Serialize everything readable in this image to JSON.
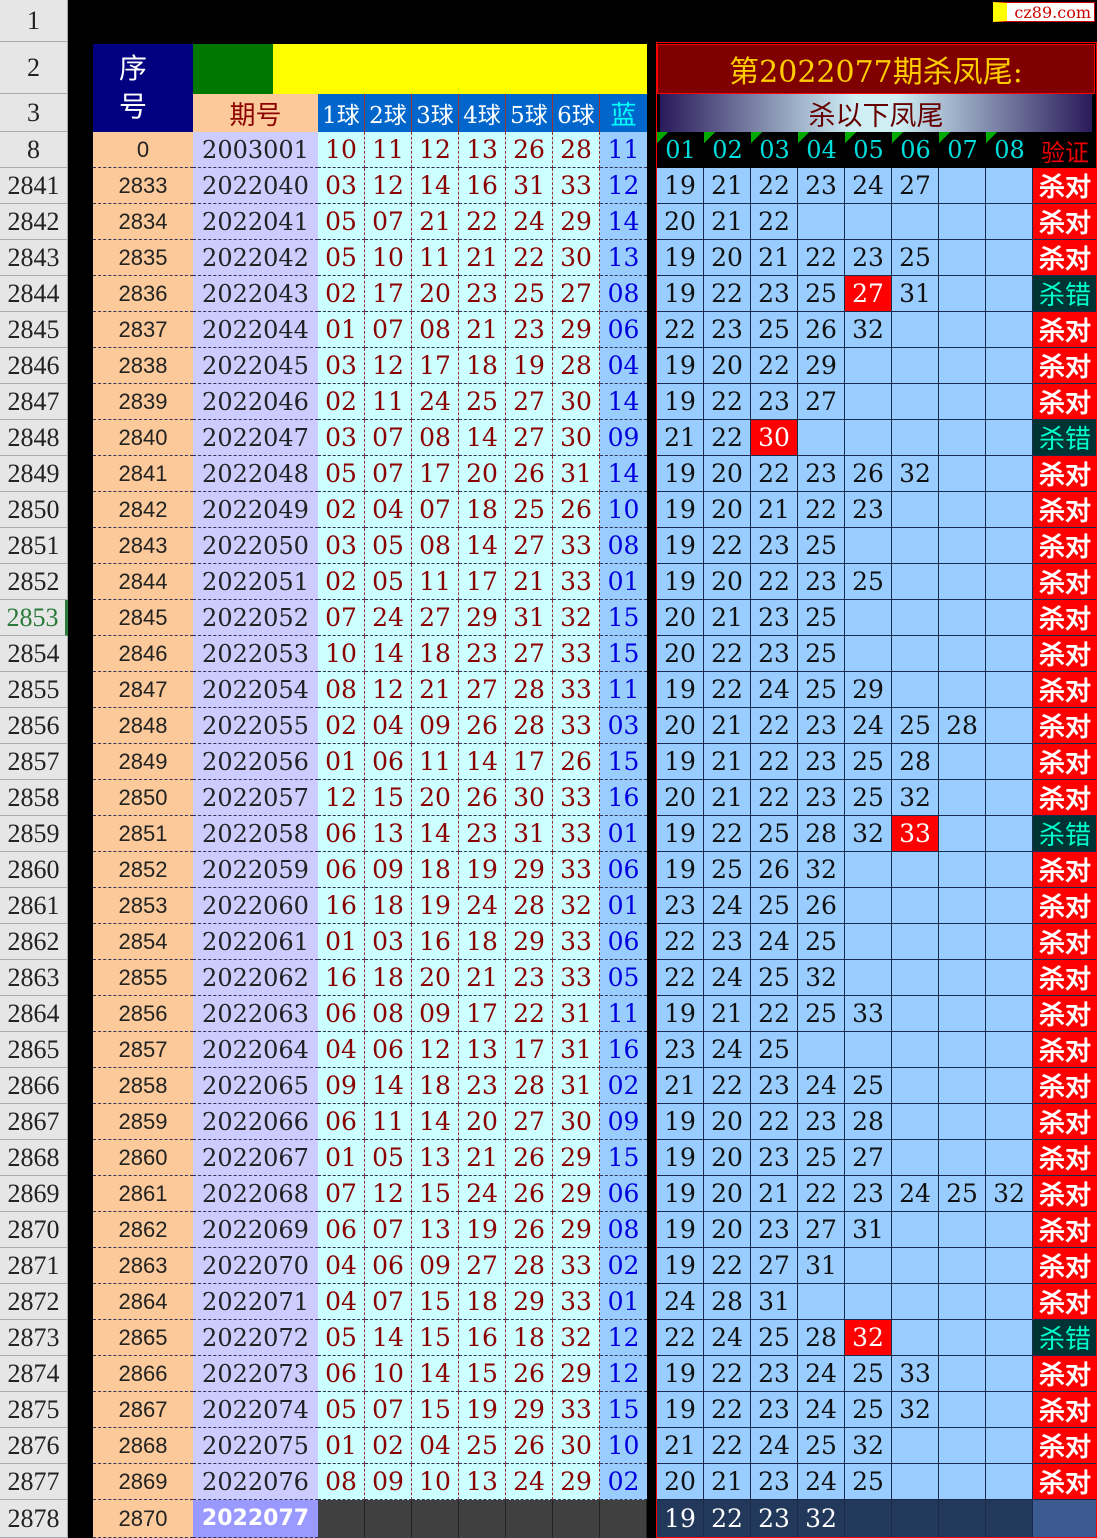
{
  "watermark": "cz89.com",
  "header": {
    "seq_label": "序号",
    "period_label": "期号",
    "ball_labels": [
      "1球",
      "2球",
      "3球",
      "4球",
      "5球",
      "6球"
    ],
    "blue_label": "蓝",
    "title": "第2022077期杀凤尾:",
    "subtitle": "杀以下凤尾",
    "kill_cols": [
      "01",
      "02",
      "03",
      "04",
      "05",
      "06",
      "07",
      "08"
    ],
    "verify_label": "验证"
  },
  "row_headers_top": [
    "1",
    "2",
    "3",
    "8"
  ],
  "first_row": {
    "seq": "0",
    "period": "2003001",
    "balls": [
      "10",
      "11",
      "12",
      "13",
      "26",
      "28"
    ],
    "blue": "11"
  },
  "colors": {
    "hit": "#ff0000",
    "ok_bg": "#ff0000",
    "bad_bg": "#003333"
  },
  "selected_row": "2853",
  "rows": [
    {
      "r": "2841",
      "s": "2833",
      "p": "2022040",
      "b": [
        "03",
        "12",
        "14",
        "16",
        "31",
        "33"
      ],
      "bl": "12",
      "k": [
        "19",
        "21",
        "22",
        "23",
        "24",
        "27"
      ],
      "v": "杀对"
    },
    {
      "r": "2842",
      "s": "2834",
      "p": "2022041",
      "b": [
        "05",
        "07",
        "21",
        "22",
        "24",
        "29"
      ],
      "bl": "14",
      "k": [
        "20",
        "21",
        "22"
      ],
      "v": "杀对"
    },
    {
      "r": "2843",
      "s": "2835",
      "p": "2022042",
      "b": [
        "05",
        "10",
        "11",
        "21",
        "22",
        "30"
      ],
      "bl": "13",
      "k": [
        "19",
        "20",
        "21",
        "22",
        "23",
        "25"
      ],
      "v": "杀对"
    },
    {
      "r": "2844",
      "s": "2836",
      "p": "2022043",
      "b": [
        "02",
        "17",
        "20",
        "23",
        "25",
        "27"
      ],
      "bl": "08",
      "k": [
        "19",
        "22",
        "23",
        "25",
        "27",
        "31"
      ],
      "v": "杀错",
      "hit": "27"
    },
    {
      "r": "2845",
      "s": "2837",
      "p": "2022044",
      "b": [
        "01",
        "07",
        "08",
        "21",
        "23",
        "29"
      ],
      "bl": "06",
      "k": [
        "22",
        "23",
        "25",
        "26",
        "32"
      ],
      "v": "杀对"
    },
    {
      "r": "2846",
      "s": "2838",
      "p": "2022045",
      "b": [
        "03",
        "12",
        "17",
        "18",
        "19",
        "28"
      ],
      "bl": "04",
      "k": [
        "19",
        "20",
        "22",
        "29"
      ],
      "v": "杀对"
    },
    {
      "r": "2847",
      "s": "2839",
      "p": "2022046",
      "b": [
        "02",
        "11",
        "24",
        "25",
        "27",
        "30"
      ],
      "bl": "14",
      "k": [
        "19",
        "22",
        "23",
        "27"
      ],
      "v": "杀对"
    },
    {
      "r": "2848",
      "s": "2840",
      "p": "2022047",
      "b": [
        "03",
        "07",
        "08",
        "14",
        "27",
        "30"
      ],
      "bl": "09",
      "k": [
        "21",
        "22",
        "30"
      ],
      "v": "杀错",
      "hit": "30"
    },
    {
      "r": "2849",
      "s": "2841",
      "p": "2022048",
      "b": [
        "05",
        "07",
        "17",
        "20",
        "26",
        "31"
      ],
      "bl": "14",
      "k": [
        "19",
        "20",
        "22",
        "23",
        "26",
        "32"
      ],
      "v": "杀对"
    },
    {
      "r": "2850",
      "s": "2842",
      "p": "2022049",
      "b": [
        "02",
        "04",
        "07",
        "18",
        "25",
        "26"
      ],
      "bl": "10",
      "k": [
        "19",
        "20",
        "21",
        "22",
        "23"
      ],
      "v": "杀对"
    },
    {
      "r": "2851",
      "s": "2843",
      "p": "2022050",
      "b": [
        "03",
        "05",
        "08",
        "14",
        "27",
        "33"
      ],
      "bl": "08",
      "k": [
        "19",
        "22",
        "23",
        "25"
      ],
      "v": "杀对"
    },
    {
      "r": "2852",
      "s": "2844",
      "p": "2022051",
      "b": [
        "02",
        "05",
        "11",
        "17",
        "21",
        "33"
      ],
      "bl": "01",
      "k": [
        "19",
        "20",
        "22",
        "23",
        "25"
      ],
      "v": "杀对"
    },
    {
      "r": "2853",
      "s": "2845",
      "p": "2022052",
      "b": [
        "07",
        "24",
        "27",
        "29",
        "31",
        "32"
      ],
      "bl": "15",
      "k": [
        "20",
        "21",
        "23",
        "25"
      ],
      "v": "杀对"
    },
    {
      "r": "2854",
      "s": "2846",
      "p": "2022053",
      "b": [
        "10",
        "14",
        "18",
        "23",
        "27",
        "33"
      ],
      "bl": "15",
      "k": [
        "20",
        "22",
        "23",
        "25"
      ],
      "v": "杀对"
    },
    {
      "r": "2855",
      "s": "2847",
      "p": "2022054",
      "b": [
        "08",
        "12",
        "21",
        "27",
        "28",
        "33"
      ],
      "bl": "11",
      "k": [
        "19",
        "22",
        "24",
        "25",
        "29"
      ],
      "v": "杀对"
    },
    {
      "r": "2856",
      "s": "2848",
      "p": "2022055",
      "b": [
        "02",
        "04",
        "09",
        "26",
        "28",
        "33"
      ],
      "bl": "03",
      "k": [
        "20",
        "21",
        "22",
        "23",
        "24",
        "25",
        "28"
      ],
      "v": "杀对"
    },
    {
      "r": "2857",
      "s": "2849",
      "p": "2022056",
      "b": [
        "01",
        "06",
        "11",
        "14",
        "17",
        "26"
      ],
      "bl": "15",
      "k": [
        "19",
        "21",
        "22",
        "23",
        "25",
        "28"
      ],
      "v": "杀对"
    },
    {
      "r": "2858",
      "s": "2850",
      "p": "2022057",
      "b": [
        "12",
        "15",
        "20",
        "26",
        "30",
        "33"
      ],
      "bl": "16",
      "k": [
        "20",
        "21",
        "22",
        "23",
        "25",
        "32"
      ],
      "v": "杀对"
    },
    {
      "r": "2859",
      "s": "2851",
      "p": "2022058",
      "b": [
        "06",
        "13",
        "14",
        "23",
        "31",
        "33"
      ],
      "bl": "01",
      "k": [
        "19",
        "22",
        "25",
        "28",
        "32",
        "33"
      ],
      "v": "杀错",
      "hit": "33"
    },
    {
      "r": "2860",
      "s": "2852",
      "p": "2022059",
      "b": [
        "06",
        "09",
        "18",
        "19",
        "29",
        "33"
      ],
      "bl": "06",
      "k": [
        "19",
        "25",
        "26",
        "32"
      ],
      "v": "杀对"
    },
    {
      "r": "2861",
      "s": "2853",
      "p": "2022060",
      "b": [
        "16",
        "18",
        "19",
        "24",
        "28",
        "32"
      ],
      "bl": "01",
      "k": [
        "23",
        "24",
        "25",
        "26"
      ],
      "v": "杀对"
    },
    {
      "r": "2862",
      "s": "2854",
      "p": "2022061",
      "b": [
        "01",
        "03",
        "16",
        "18",
        "29",
        "33"
      ],
      "bl": "06",
      "k": [
        "22",
        "23",
        "24",
        "25"
      ],
      "v": "杀对"
    },
    {
      "r": "2863",
      "s": "2855",
      "p": "2022062",
      "b": [
        "16",
        "18",
        "20",
        "21",
        "23",
        "33"
      ],
      "bl": "05",
      "k": [
        "22",
        "24",
        "25",
        "32"
      ],
      "v": "杀对"
    },
    {
      "r": "2864",
      "s": "2856",
      "p": "2022063",
      "b": [
        "06",
        "08",
        "09",
        "17",
        "22",
        "31"
      ],
      "bl": "11",
      "k": [
        "19",
        "21",
        "22",
        "25",
        "33"
      ],
      "v": "杀对"
    },
    {
      "r": "2865",
      "s": "2857",
      "p": "2022064",
      "b": [
        "04",
        "06",
        "12",
        "13",
        "17",
        "31"
      ],
      "bl": "16",
      "k": [
        "23",
        "24",
        "25"
      ],
      "v": "杀对"
    },
    {
      "r": "2866",
      "s": "2858",
      "p": "2022065",
      "b": [
        "09",
        "14",
        "18",
        "23",
        "28",
        "31"
      ],
      "bl": "02",
      "k": [
        "21",
        "22",
        "23",
        "24",
        "25"
      ],
      "v": "杀对"
    },
    {
      "r": "2867",
      "s": "2859",
      "p": "2022066",
      "b": [
        "06",
        "11",
        "14",
        "20",
        "27",
        "30"
      ],
      "bl": "09",
      "k": [
        "19",
        "20",
        "22",
        "23",
        "28"
      ],
      "v": "杀对"
    },
    {
      "r": "2868",
      "s": "2860",
      "p": "2022067",
      "b": [
        "01",
        "05",
        "13",
        "21",
        "26",
        "29"
      ],
      "bl": "15",
      "k": [
        "19",
        "20",
        "23",
        "25",
        "27"
      ],
      "v": "杀对"
    },
    {
      "r": "2869",
      "s": "2861",
      "p": "2022068",
      "b": [
        "07",
        "12",
        "15",
        "24",
        "26",
        "29"
      ],
      "bl": "06",
      "k": [
        "19",
        "20",
        "21",
        "22",
        "23",
        "24",
        "25",
        "32"
      ],
      "v": "杀对"
    },
    {
      "r": "2870",
      "s": "2862",
      "p": "2022069",
      "b": [
        "06",
        "07",
        "13",
        "19",
        "26",
        "29"
      ],
      "bl": "08",
      "k": [
        "19",
        "20",
        "23",
        "27",
        "31"
      ],
      "v": "杀对"
    },
    {
      "r": "2871",
      "s": "2863",
      "p": "2022070",
      "b": [
        "04",
        "06",
        "09",
        "27",
        "28",
        "33"
      ],
      "bl": "02",
      "k": [
        "19",
        "22",
        "27",
        "31"
      ],
      "v": "杀对"
    },
    {
      "r": "2872",
      "s": "2864",
      "p": "2022071",
      "b": [
        "04",
        "07",
        "15",
        "18",
        "29",
        "33"
      ],
      "bl": "01",
      "k": [
        "24",
        "28",
        "31"
      ],
      "v": "杀对"
    },
    {
      "r": "2873",
      "s": "2865",
      "p": "2022072",
      "b": [
        "05",
        "14",
        "15",
        "16",
        "18",
        "32"
      ],
      "bl": "12",
      "k": [
        "22",
        "24",
        "25",
        "28",
        "32"
      ],
      "v": "杀错",
      "hit": "32"
    },
    {
      "r": "2874",
      "s": "2866",
      "p": "2022073",
      "b": [
        "06",
        "10",
        "14",
        "15",
        "26",
        "29"
      ],
      "bl": "12",
      "k": [
        "19",
        "22",
        "23",
        "24",
        "25",
        "33"
      ],
      "v": "杀对"
    },
    {
      "r": "2875",
      "s": "2867",
      "p": "2022074",
      "b": [
        "05",
        "07",
        "15",
        "19",
        "29",
        "33"
      ],
      "bl": "15",
      "k": [
        "19",
        "22",
        "23",
        "24",
        "25",
        "32"
      ],
      "v": "杀对"
    },
    {
      "r": "2876",
      "s": "2868",
      "p": "2022075",
      "b": [
        "01",
        "02",
        "04",
        "25",
        "26",
        "30"
      ],
      "bl": "10",
      "k": [
        "21",
        "22",
        "24",
        "25",
        "32"
      ],
      "v": "杀对"
    },
    {
      "r": "2877",
      "s": "2869",
      "p": "2022076",
      "b": [
        "08",
        "09",
        "10",
        "13",
        "24",
        "29"
      ],
      "bl": "02",
      "k": [
        "20",
        "21",
        "23",
        "24",
        "25"
      ],
      "v": "杀对"
    }
  ],
  "last_row": {
    "r": "2878",
    "s": "2870",
    "p": "2022077",
    "k": [
      "19",
      "22",
      "23",
      "32"
    ]
  }
}
